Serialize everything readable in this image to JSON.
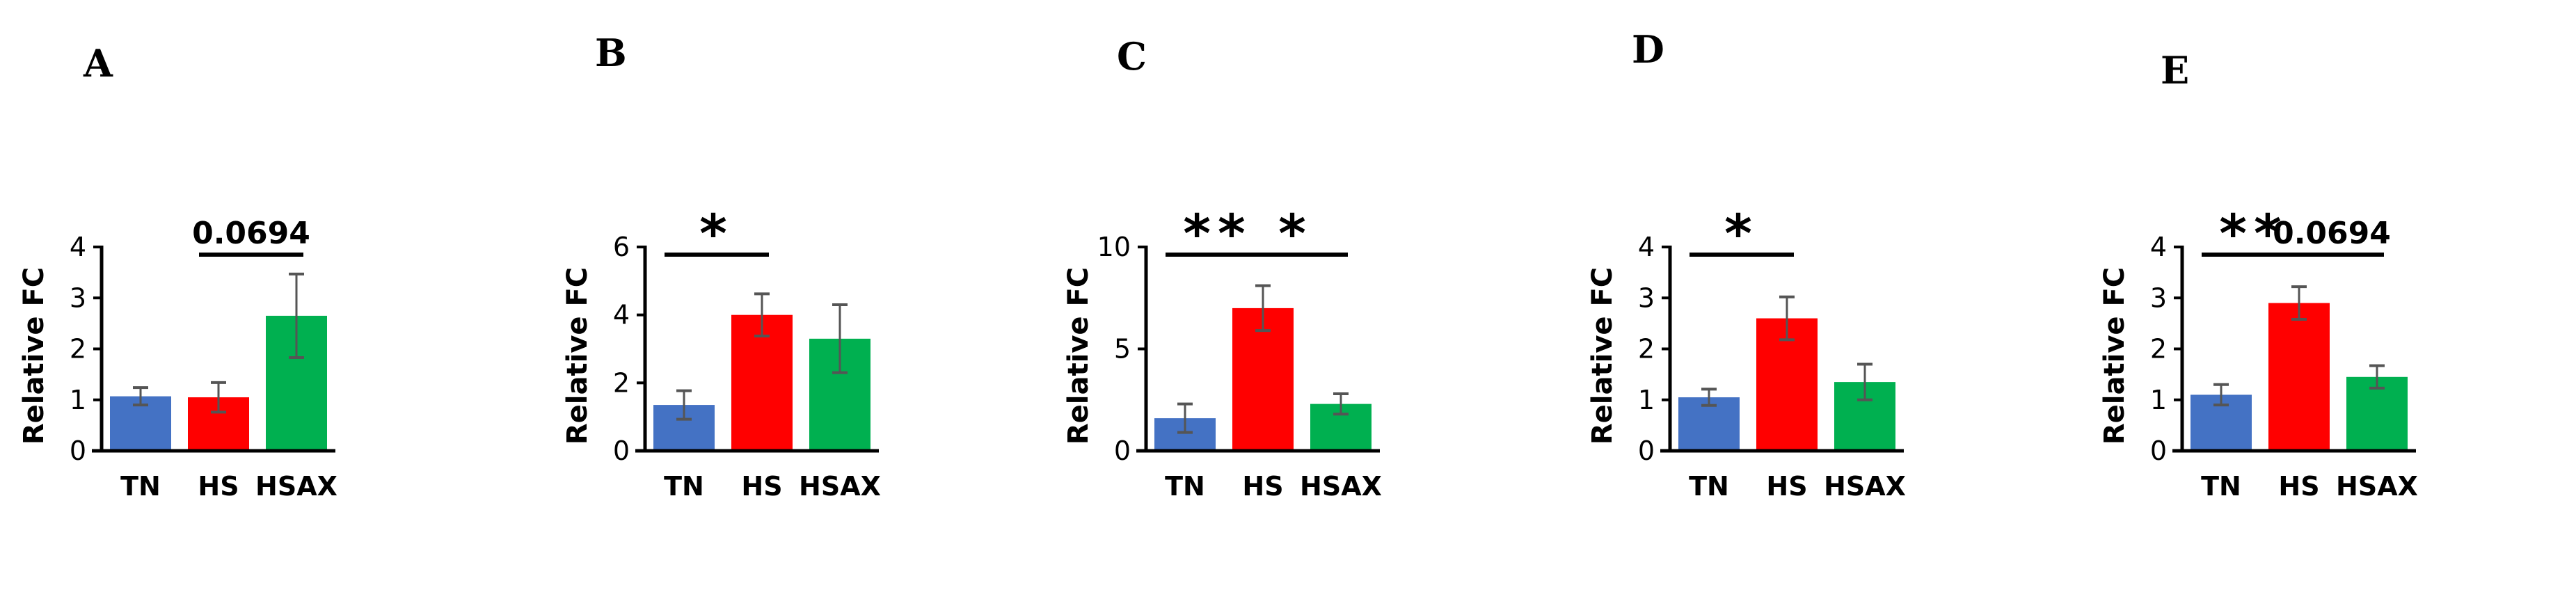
{
  "chart_data": [
    {
      "type": "bar",
      "panel": "A",
      "ylabel": "Relative FC",
      "ylim": [
        0,
        4
      ],
      "yticks": [
        0,
        1,
        2,
        3,
        4
      ],
      "categories": [
        "TN",
        "HS",
        "HSAX"
      ],
      "values": [
        1.07,
        1.05,
        2.65
      ],
      "errors": [
        0.17,
        0.29,
        0.82
      ],
      "colors": [
        "#4472C4",
        "#FF0000",
        "#00B050"
      ],
      "annotations": [
        {
          "from": "HS",
          "to": "HSAX",
          "label": "0.0694"
        }
      ]
    },
    {
      "type": "bar",
      "panel": "B",
      "ylabel": "Relative FC",
      "ylim": [
        0,
        6
      ],
      "yticks": [
        0,
        2,
        4,
        6
      ],
      "categories": [
        "TN",
        "HS",
        "HSAX"
      ],
      "values": [
        1.35,
        4.0,
        3.3
      ],
      "errors": [
        0.42,
        0.62,
        1.0
      ],
      "colors": [
        "#4472C4",
        "#FF0000",
        "#00B050"
      ],
      "annotations": [
        {
          "from": "TN",
          "to": "HS",
          "label": "*"
        }
      ]
    },
    {
      "type": "bar",
      "panel": "C",
      "ylabel": "Relative FC",
      "ylim": [
        0,
        10
      ],
      "yticks": [
        0,
        5,
        10
      ],
      "categories": [
        "TN",
        "HS",
        "HSAX"
      ],
      "values": [
        1.6,
        7.0,
        2.3
      ],
      "errors": [
        0.7,
        1.1,
        0.5
      ],
      "colors": [
        "#4472C4",
        "#FF0000",
        "#00B050"
      ],
      "annotations": [
        {
          "from": "TN",
          "to": "HS",
          "label": "**"
        },
        {
          "from": "HS",
          "to": "HSAX",
          "label": "*"
        }
      ]
    },
    {
      "type": "bar",
      "panel": "D",
      "ylabel": "Relative FC",
      "ylim": [
        0,
        4
      ],
      "yticks": [
        0,
        1,
        2,
        3,
        4
      ],
      "categories": [
        "TN",
        "HS",
        "HSAX"
      ],
      "values": [
        1.05,
        2.6,
        1.35
      ],
      "errors": [
        0.16,
        0.42,
        0.35
      ],
      "colors": [
        "#4472C4",
        "#FF0000",
        "#00B050"
      ],
      "annotations": [
        {
          "from": "TN",
          "to": "HS",
          "label": "*"
        }
      ]
    },
    {
      "type": "bar",
      "panel": "E",
      "ylabel": "Relative FC",
      "ylim": [
        0,
        4
      ],
      "yticks": [
        0,
        1,
        2,
        3,
        4
      ],
      "categories": [
        "TN",
        "HS",
        "HSAX"
      ],
      "values": [
        1.1,
        2.9,
        1.45
      ],
      "errors": [
        0.2,
        0.32,
        0.22
      ],
      "colors": [
        "#4472C4",
        "#FF0000",
        "#00B050"
      ],
      "annotations": [
        {
          "from": "TN",
          "to": "HS",
          "label": "**"
        },
        {
          "from": "HS",
          "to": "HSAX",
          "label": "0.0694"
        }
      ]
    }
  ]
}
